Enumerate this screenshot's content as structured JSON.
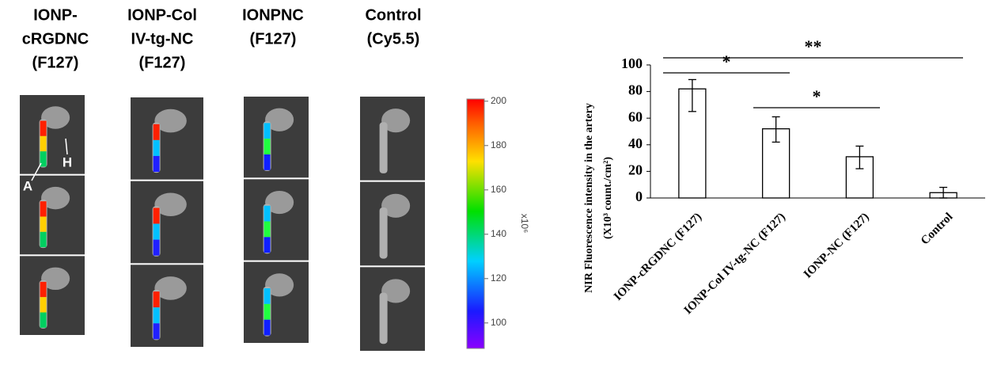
{
  "panel": {
    "columns": [
      {
        "lines": [
          "IONP-",
          "cRGDNC",
          "(F127)"
        ]
      },
      {
        "lines": [
          "IONP-Col",
          "IV-tg-NC",
          "(F127)"
        ]
      },
      {
        "lines": [
          "IONPNC",
          "(F127)"
        ]
      },
      {
        "lines": [
          "Control",
          "(Cy5.5)"
        ]
      }
    ],
    "markers": [
      "A",
      "H"
    ]
  },
  "colorbar": {
    "lim": [
      88.5,
      201
    ],
    "ticks": [
      100,
      120,
      140,
      160,
      180,
      200
    ],
    "unit_label": "x10⁶"
  },
  "chart_data": {
    "type": "bar",
    "ylabel": [
      "NIR Fluorescence intensity in the artery",
      "(X10³ count./cm²)"
    ],
    "categories": [
      "IONP-cRGDNC (F127)",
      "IONP-Col IV-tg-NC (F127)",
      "IONP-NC (F127)",
      "Control"
    ],
    "values": [
      82,
      52,
      31,
      4
    ],
    "error_minus": [
      17,
      10,
      9,
      4
    ],
    "error_plus": [
      7,
      9,
      8,
      4
    ],
    "color": "#ffffff",
    "ylim": [
      0,
      100
    ],
    "yticks": [
      0,
      20,
      40,
      60,
      80,
      100
    ],
    "annotations": [
      "*",
      "*",
      "**"
    ]
  }
}
